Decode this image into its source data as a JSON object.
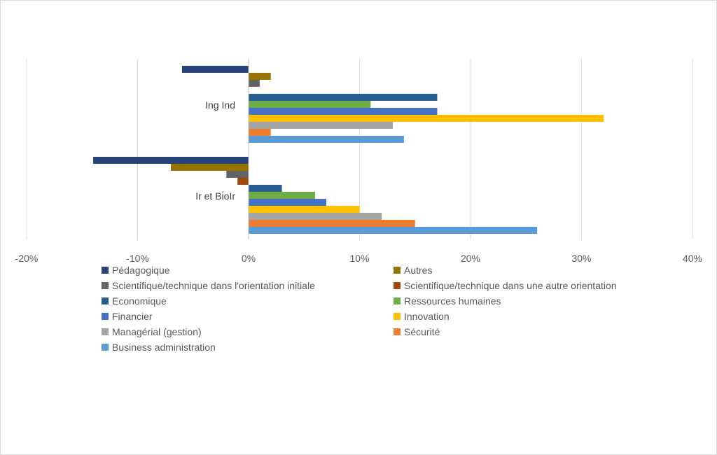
{
  "chart_data": {
    "type": "bar",
    "orientation": "horizontal",
    "categories": [
      "Ing Ind",
      "Ir et BioIr"
    ],
    "xlim": [
      -20,
      40
    ],
    "ticks": [
      -20,
      -10,
      0,
      10,
      20,
      30,
      40
    ],
    "tick_labels": [
      "-20%",
      "-10%",
      "0%",
      "10%",
      "20%",
      "30%",
      "40%"
    ],
    "grid": true,
    "legend_position": "bottom",
    "series": [
      {
        "name": "Pédagogique",
        "color": "#264478",
        "values": [
          -6,
          -14
        ]
      },
      {
        "name": "Autres",
        "color": "#997300",
        "values": [
          2,
          -7
        ]
      },
      {
        "name": "Scientifique/technique dans l'orientation initiale",
        "color": "#636363",
        "values": [
          1,
          -2
        ]
      },
      {
        "name": "Scientifique/technique dans une autre orientation",
        "color": "#9E480E",
        "values": [
          0,
          -1
        ]
      },
      {
        "name": "Economique",
        "color": "#255E91",
        "values": [
          17,
          3
        ]
      },
      {
        "name": "Ressources humaines",
        "color": "#70AD47",
        "values": [
          11,
          6
        ]
      },
      {
        "name": "Financier",
        "color": "#4472C4",
        "values": [
          17,
          7
        ]
      },
      {
        "name": "Innovation",
        "color": "#FFC000",
        "values": [
          32,
          10
        ]
      },
      {
        "name": "Managérial (gestion)",
        "color": "#A5A5A5",
        "values": [
          13,
          12
        ]
      },
      {
        "name": "Sécurité",
        "color": "#ED7D31",
        "values": [
          2,
          15
        ]
      },
      {
        "name": "Business administration",
        "color": "#5B9BD5",
        "values": [
          14,
          26
        ]
      }
    ]
  }
}
